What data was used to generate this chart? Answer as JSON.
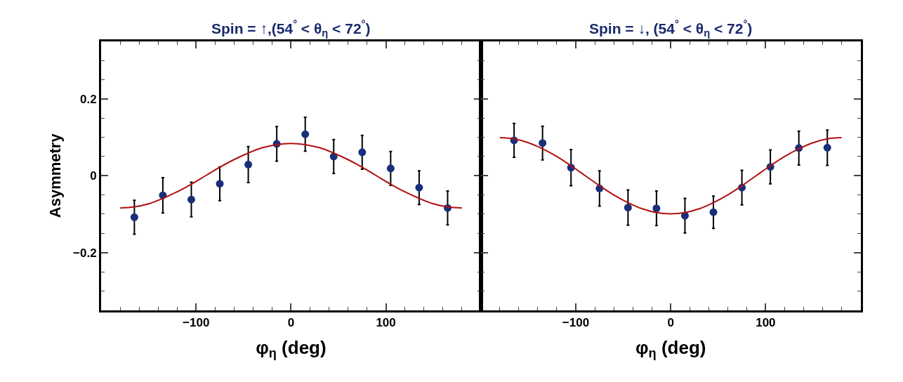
{
  "chart_data": [
    {
      "type": "scatter",
      "title": "Spin = ↑,(54$^{°}$ < θ$_{η}$ < 72$^{°}$)",
      "xlabel": "φ$_{η}$ (deg)",
      "ylabel": "Asymmetry",
      "xlim": [
        -200,
        200
      ],
      "xticks": [
        -100,
        0,
        100
      ],
      "ylim": [
        -0.35,
        0.35
      ],
      "yticks": [
        -0.2,
        0,
        0.2
      ],
      "series": [
        {
          "marker": "circle",
          "color": "#1a2f7a",
          "x": [
            -165,
            -135,
            -105,
            -75,
            -45,
            -15,
            15,
            45,
            75,
            105,
            135,
            165
          ],
          "values": [
            -0.108,
            -0.051,
            -0.062,
            -0.021,
            0.029,
            0.083,
            0.108,
            0.05,
            0.061,
            0.019,
            -0.031,
            -0.084
          ],
          "errors": [
            0.044,
            0.046,
            0.045,
            0.044,
            0.047,
            0.045,
            0.044,
            0.044,
            0.044,
            0.044,
            0.044,
            0.044
          ]
        },
        {
          "type": "line",
          "marker": "none",
          "color": "#b01010",
          "x": [
            -180,
            -165,
            -150,
            -135,
            -120,
            -105,
            -90,
            -75,
            -60,
            -45,
            -30,
            -15,
            0,
            15,
            30,
            45,
            60,
            75,
            90,
            105,
            120,
            135,
            150,
            165,
            180
          ],
          "values": [
            -0.084,
            -0.081,
            -0.073,
            -0.059,
            -0.042,
            -0.022,
            0,
            0.022,
            0.042,
            0.059,
            0.073,
            0.081,
            0.084,
            0.081,
            0.073,
            0.059,
            0.042,
            0.022,
            0,
            -0.022,
            -0.042,
            -0.059,
            -0.073,
            -0.081,
            -0.084
          ]
        }
      ]
    },
    {
      "type": "scatter",
      "title": "Spin = ↓, (54$^{°}$ < θ$_{η}$ < 72$^{°}$)",
      "xlabel": "φ$_{η}$ (deg)",
      "xlim": [
        -200,
        200
      ],
      "xticks": [
        -100,
        0,
        100
      ],
      "ylim": [
        -0.35,
        0.35
      ],
      "yticks": [
        -0.2,
        0,
        0.2
      ],
      "tick_labels": "x",
      "series": [
        {
          "marker": "circle",
          "color": "#1a2f7a",
          "x": [
            -165,
            -135,
            -105,
            -75,
            -45,
            -15,
            15,
            45,
            75,
            105,
            135,
            165
          ],
          "values": [
            0.092,
            0.085,
            0.021,
            -0.033,
            -0.083,
            -0.085,
            -0.104,
            -0.095,
            -0.031,
            0.023,
            0.072,
            0.073
          ],
          "errors": [
            0.044,
            0.044,
            0.047,
            0.046,
            0.046,
            0.045,
            0.045,
            0.042,
            0.045,
            0.044,
            0.044,
            0.046
          ]
        },
        {
          "type": "line",
          "marker": "none",
          "color": "#b01010",
          "x": [
            -180,
            -165,
            -150,
            -135,
            -120,
            -105,
            -90,
            -75,
            -60,
            -45,
            -30,
            -15,
            0,
            15,
            30,
            45,
            60,
            75,
            90,
            105,
            120,
            135,
            150,
            165,
            180
          ],
          "values": [
            0.099,
            0.096,
            0.086,
            0.07,
            0.05,
            0.026,
            0,
            -0.026,
            -0.05,
            -0.07,
            -0.086,
            -0.096,
            -0.099,
            -0.096,
            -0.086,
            -0.07,
            -0.05,
            -0.026,
            0,
            0.026,
            0.05,
            0.07,
            0.086,
            0.096,
            0.099
          ]
        }
      ]
    }
  ]
}
